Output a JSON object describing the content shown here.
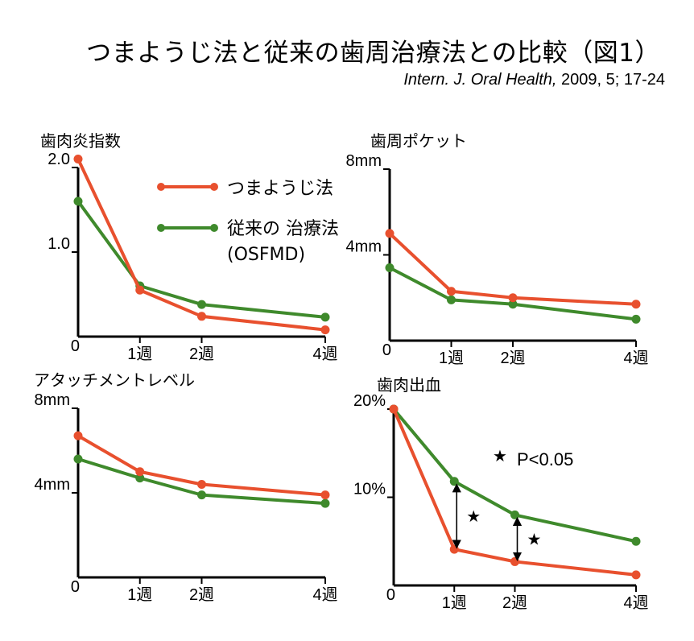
{
  "title": "つまようじ法と従来の歯周治療法との比較（図1）",
  "citation": {
    "journal": "Intern. J. Oral Health,",
    "details": " 2009, 5; 17-24"
  },
  "legend": {
    "toothpick": "つまようじ法",
    "conventional_line1": "従来の 治療法",
    "conventional_line2": "(OSFMD)"
  },
  "colors": {
    "toothpick": "#e8502e",
    "conventional": "#3f8a2c",
    "axis": "#000000"
  },
  "chart_data": [
    {
      "type": "line",
      "title": "歯肉炎指数",
      "x": [
        0,
        1,
        2,
        4
      ],
      "x_tick_labels": [
        "0",
        "1週",
        "2週",
        "4週"
      ],
      "ylim": [
        0,
        2.0
      ],
      "y_ticks": [
        {
          "value": 1.0,
          "label": "1.0"
        },
        {
          "value": 2.0,
          "label": "2.0"
        }
      ],
      "series": [
        {
          "name": "つまようじ法",
          "key": "toothpick",
          "values": [
            2.1,
            0.55,
            0.24,
            0.08
          ]
        },
        {
          "name": "従来の 治療法 (OSFMD)",
          "key": "conventional",
          "values": [
            1.6,
            0.6,
            0.38,
            0.23
          ]
        }
      ]
    },
    {
      "type": "line",
      "title": "歯周ポケット",
      "x": [
        0,
        1,
        2,
        4
      ],
      "x_tick_labels": [
        "0",
        "1週",
        "2週",
        "4週"
      ],
      "ylim": [
        0,
        8
      ],
      "y_ticks": [
        {
          "value": 4,
          "label": "4mm"
        },
        {
          "value": 8,
          "label": "8mm"
        }
      ],
      "series": [
        {
          "name": "つまようじ法",
          "key": "toothpick",
          "values": [
            5.0,
            2.3,
            2.0,
            1.7
          ]
        },
        {
          "name": "従来の 治療法 (OSFMD)",
          "key": "conventional",
          "values": [
            3.4,
            1.9,
            1.7,
            1.0
          ]
        }
      ]
    },
    {
      "type": "line",
      "title": "アタッチメントレベル",
      "x": [
        0,
        1,
        2,
        4
      ],
      "x_tick_labels": [
        "0",
        "1週",
        "2週",
        "4週"
      ],
      "ylim": [
        0,
        8
      ],
      "y_ticks": [
        {
          "value": 4,
          "label": "4mm"
        },
        {
          "value": 8,
          "label": "8mm"
        }
      ],
      "series": [
        {
          "name": "つまようじ法",
          "key": "toothpick",
          "values": [
            6.7,
            5.0,
            4.4,
            3.9
          ]
        },
        {
          "name": "従来の 治療法 (OSFMD)",
          "key": "conventional",
          "values": [
            5.6,
            4.7,
            3.9,
            3.5
          ]
        }
      ]
    },
    {
      "type": "line",
      "title": "歯肉出血",
      "x": [
        0,
        1,
        2,
        4
      ],
      "x_tick_labels": [
        "0",
        "1週",
        "2週",
        "4週"
      ],
      "ylim": [
        0,
        20
      ],
      "y_ticks": [
        {
          "value": 10,
          "label": "10%"
        },
        {
          "value": 20,
          "label": "20%"
        }
      ],
      "series": [
        {
          "name": "つまようじ法",
          "key": "toothpick",
          "values": [
            20,
            4.1,
            2.7,
            1.2
          ]
        },
        {
          "name": "従来の 治療法 (OSFMD)",
          "key": "conventional",
          "values": [
            20,
            11.8,
            8.0,
            5.0
          ]
        }
      ],
      "significance": {
        "at_x": [
          1,
          2
        ],
        "marker": "★",
        "legend_text": "P<0.05"
      }
    }
  ]
}
